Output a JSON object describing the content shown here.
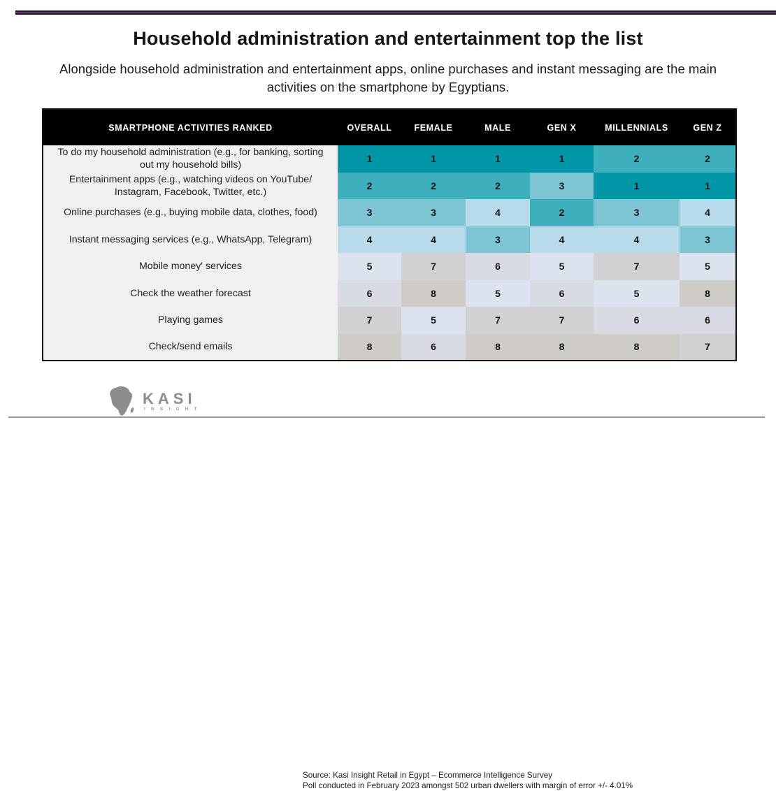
{
  "page": {
    "title": "Household administration and entertainment top the list",
    "subtitle": "Alongside household administration and entertainment apps, online purchases and instant messaging are the main activities on the smartphone by Egyptians."
  },
  "table": {
    "header": [
      "SMARTPHONE ACTIVITIES RANKED",
      "OVERALL",
      "FEMALE",
      "MALE",
      "GEN X",
      "MILLENNIALS",
      "GEN Z"
    ],
    "rows": [
      {
        "activity": "To do my household administration (e.g., for banking, sorting out my household bills)",
        "ranks": [
          1,
          1,
          1,
          1,
          2,
          2
        ]
      },
      {
        "activity": "Entertainment apps (e.g., watching videos on YouTube/ Instagram, Facebook, Twitter, etc.)",
        "ranks": [
          2,
          2,
          2,
          3,
          1,
          1
        ]
      },
      {
        "activity": "Online purchases (e.g., buying mobile data, clothes, food)",
        "ranks": [
          3,
          3,
          4,
          2,
          3,
          4
        ]
      },
      {
        "activity": "Instant messaging services (e.g., WhatsApp, Telegram)",
        "ranks": [
          4,
          4,
          3,
          4,
          4,
          3
        ]
      },
      {
        "activity": "Mobile money' services",
        "ranks": [
          5,
          7,
          6,
          5,
          7,
          5
        ]
      },
      {
        "activity": "Check the weather forecast",
        "ranks": [
          6,
          8,
          5,
          6,
          5,
          8
        ]
      },
      {
        "activity": "Playing games",
        "ranks": [
          7,
          5,
          7,
          7,
          6,
          6
        ]
      },
      {
        "activity": "Check/send emails",
        "ranks": [
          8,
          6,
          8,
          8,
          8,
          7
        ]
      }
    ],
    "rank_colors": {
      "1": "#0096a7",
      "2": "#3eafbd",
      "3": "#7ec5d3",
      "4": "#b7dbe8",
      "5": "#dce3ef",
      "6": "#d8dae4",
      "7": "#d1d0d3",
      "8": "#cfcbc6"
    },
    "label_column_background": "#f0f0f0",
    "header_background": "#000000"
  },
  "chart_data": {
    "type": "heatmap",
    "title": "Household administration and entertainment top the list",
    "subtitle": "Alongside household administration and entertainment apps, online purchases and instant messaging are the main activities on the smartphone by Egyptians.",
    "columns": [
      "Overall",
      "Female",
      "Male",
      "Gen X",
      "Millennials",
      "Gen Z"
    ],
    "rows": [
      "To do my household administration (e.g., for banking, sorting out my household bills)",
      "Entertainment apps (e.g., watching videos on YouTube/ Instagram, Facebook, Twitter, etc.)",
      "Online purchases (e.g., buying mobile data, clothes, food)",
      "Instant messaging services (e.g., WhatsApp, Telegram)",
      "Mobile money' services",
      "Check the weather forecast",
      "Playing games",
      "Check/send emails"
    ],
    "values": [
      [
        1,
        1,
        1,
        1,
        2,
        2
      ],
      [
        2,
        2,
        2,
        3,
        1,
        1
      ],
      [
        3,
        3,
        4,
        2,
        3,
        4
      ],
      [
        4,
        4,
        3,
        4,
        4,
        3
      ],
      [
        5,
        7,
        6,
        5,
        7,
        5
      ],
      [
        6,
        8,
        5,
        6,
        5,
        8
      ],
      [
        7,
        5,
        7,
        7,
        6,
        6
      ],
      [
        8,
        6,
        8,
        8,
        8,
        7
      ]
    ],
    "value_meaning": "rank (1 = most common activity, 8 = least common)",
    "value_range": [
      1,
      8
    ],
    "legend": "none",
    "color_scale": [
      "#0096a7",
      "#3eafbd",
      "#7ec5d3",
      "#b7dbe8",
      "#dce3ef",
      "#d8dae4",
      "#d1d0d3",
      "#cfcbc6"
    ]
  },
  "footer": {
    "logo_text": "KASI",
    "logo_sub": "I N S I G H T",
    "source_line1": "Source: Kasi Insight Retail in Egypt – Ecommerce Intelligence Survey",
    "source_line2": "Poll conducted in February 2023 amongst 502 urban dwellers with margin of error +/- 4.01%"
  },
  "colors": {
    "top_divider": "#5e3a64",
    "top_divider_edge": "#241028",
    "bottom_divider": "#9b9b9b"
  }
}
